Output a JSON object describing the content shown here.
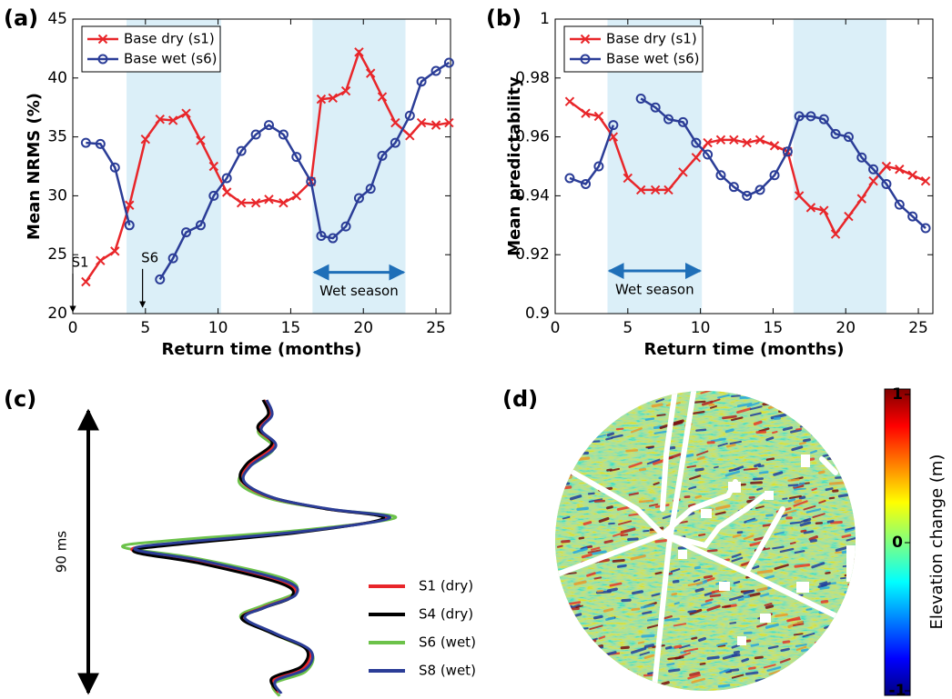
{
  "chart_data": [
    {
      "type": "line",
      "panel_label": "(a)",
      "xlabel": "Return time (months)",
      "ylabel": "Mean NRMS (%)",
      "x": [
        0.9,
        1.9,
        2.9,
        3.9,
        5.0,
        6.0,
        6.9,
        7.8,
        8.8,
        9.7,
        10.6,
        11.6,
        12.6,
        13.5,
        14.5,
        15.4,
        16.4,
        17.1,
        17.9,
        18.8,
        19.7,
        20.5,
        21.3,
        22.2,
        23.2,
        24.0,
        25.0,
        25.9
      ],
      "series": [
        {
          "name": "Base dry (s1)",
          "color": "#e8262a",
          "marker": "x",
          "values": [
            22.7,
            24.5,
            25.3,
            29.2,
            34.8,
            36.5,
            36.4,
            37.0,
            34.7,
            32.5,
            30.3,
            29.4,
            29.4,
            29.7,
            29.4,
            30.0,
            31.2,
            38.2,
            38.3,
            38.9,
            42.2,
            40.4,
            38.4,
            36.2,
            35.1,
            36.2,
            36.0,
            36.2
          ]
        },
        {
          "name": "Base wet (s6)",
          "color": "#2b3d97",
          "marker": "o",
          "values": [
            34.5,
            34.4,
            32.4,
            27.5,
            null,
            22.9,
            24.7,
            26.9,
            27.5,
            30.0,
            31.5,
            33.8,
            35.2,
            36.0,
            35.2,
            33.3,
            31.2,
            26.6,
            26.4,
            27.4,
            29.8,
            30.6,
            33.4,
            34.5,
            36.8,
            39.7,
            40.6,
            41.3
          ]
        }
      ],
      "xlim": [
        0,
        26
      ],
      "ylim": [
        20,
        45
      ],
      "xticks": [
        0,
        5,
        10,
        15,
        20,
        25
      ],
      "yticks": [
        20,
        25,
        30,
        35,
        40,
        45
      ],
      "legend": "upper left",
      "shaded_ranges": [
        [
          3.7,
          10.2
        ],
        [
          16.5,
          22.9
        ]
      ],
      "annotations": [
        {
          "text": "Wet season",
          "x": [
            16.5,
            22.9
          ],
          "y": 23.5
        },
        {
          "text": "S1",
          "x": 0,
          "y": 20
        },
        {
          "text": "S6",
          "x": 4.8,
          "y": 20.4
        }
      ]
    },
    {
      "type": "line",
      "panel_label": "(b)",
      "xlabel": "Return time (months)",
      "ylabel": "Mean predictability",
      "x": [
        1.0,
        2.1,
        3.0,
        4.0,
        5.0,
        5.9,
        6.9,
        7.8,
        8.8,
        9.7,
        10.5,
        11.4,
        12.3,
        13.2,
        14.1,
        15.1,
        16.0,
        16.8,
        17.6,
        18.5,
        19.3,
        20.2,
        21.1,
        21.9,
        22.8,
        23.7,
        24.6,
        25.5
      ],
      "series": [
        {
          "name": "Base dry (s1)",
          "color": "#e8262a",
          "marker": "x",
          "values": [
            0.972,
            0.968,
            0.967,
            0.96,
            0.946,
            0.942,
            0.942,
            0.942,
            0.948,
            0.953,
            0.958,
            0.959,
            0.959,
            0.958,
            0.959,
            0.957,
            0.955,
            0.94,
            0.936,
            0.935,
            0.927,
            0.933,
            0.939,
            0.945,
            0.95,
            0.949,
            0.947,
            0.945
          ]
        },
        {
          "name": "Base wet (s6)",
          "color": "#2b3d97",
          "marker": "o",
          "values": [
            0.946,
            0.944,
            0.95,
            0.964,
            null,
            0.973,
            0.97,
            0.966,
            0.965,
            0.958,
            0.954,
            0.947,
            0.943,
            0.94,
            0.942,
            0.947,
            0.955,
            0.967,
            0.967,
            0.966,
            0.961,
            0.96,
            0.953,
            0.949,
            0.944,
            0.937,
            0.933,
            0.929
          ]
        }
      ],
      "xlim": [
        0,
        26
      ],
      "ylim": [
        0.9,
        1
      ],
      "xticks": [
        0,
        5,
        10,
        15,
        20,
        25
      ],
      "yticks": [
        0.9,
        0.92,
        0.94,
        0.96,
        0.98,
        1
      ],
      "legend": "upper left",
      "shaded_ranges": [
        [
          3.6,
          10.1
        ],
        [
          16.4,
          22.8
        ]
      ],
      "annotations": [
        {
          "text": "Wet season",
          "x": [
            3.6,
            10.1
          ],
          "y": 0.9145
        }
      ]
    }
  ],
  "waveform_panel": {
    "panel_label": "(c)",
    "scale_label": "90 ms",
    "legend": [
      {
        "name": "S1 (dry)",
        "color": "#e8262a"
      },
      {
        "name": "S4 (dry)",
        "color": "#000000"
      },
      {
        "name": "S6 (wet)",
        "color": "#6cc24a"
      },
      {
        "name": "S8 (wet)",
        "color": "#2b3d97"
      }
    ]
  },
  "map_panel": {
    "panel_label": "(d)",
    "colorbar": {
      "title": "Elevation change (m)",
      "lim": [
        -1,
        1
      ],
      "ticks": [
        1,
        0,
        -1
      ]
    }
  }
}
